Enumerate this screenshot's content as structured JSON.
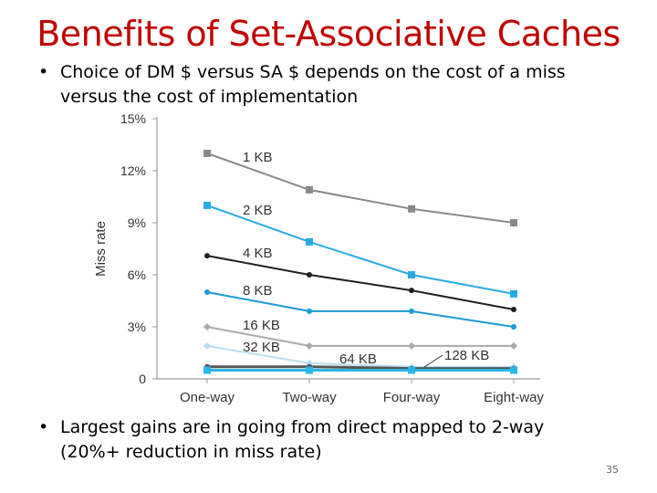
{
  "slide": {
    "title": "Benefits of Set-Associative Caches",
    "bullets": [
      "Choice of DM $ versus SA $ depends on the cost of a miss versus the cost of implementation",
      "Largest gains are in going from direct mapped to 2-way (20%+ reduction in miss rate)"
    ],
    "page_number": "35"
  },
  "chart_data": {
    "type": "line",
    "categories": [
      "One-way",
      "Two-way",
      "Four-way",
      "Eight-way"
    ],
    "ylabel": "Miss rate",
    "xlabel": "",
    "ylim": [
      0,
      15
    ],
    "y_ticks": [
      "0",
      "3%",
      "6%",
      "9%",
      "12%",
      "15%"
    ],
    "grid": false,
    "series": [
      {
        "name": "1 KB",
        "values": [
          13.0,
          10.9,
          9.8,
          9.0
        ],
        "color": "#888888",
        "marker": "square"
      },
      {
        "name": "2 KB",
        "values": [
          10.0,
          7.9,
          6.0,
          4.9
        ],
        "color": "#29abe2",
        "marker": "square"
      },
      {
        "name": "4 KB",
        "values": [
          7.1,
          6.0,
          5.1,
          4.0
        ],
        "color": "#231f20",
        "marker": "circle"
      },
      {
        "name": "8 KB",
        "values": [
          5.0,
          3.9,
          3.9,
          3.0
        ],
        "color": "#1a9ad6",
        "marker": "circle"
      },
      {
        "name": "16 KB",
        "values": [
          3.0,
          1.9,
          1.9,
          1.9
        ],
        "color": "#aaaaaa",
        "marker": "diamond"
      },
      {
        "name": "32 KB",
        "values": [
          1.9,
          0.9,
          0.7,
          0.7
        ],
        "color": "#b7dff2",
        "marker": "diamond"
      },
      {
        "name": "64 KB",
        "values": [
          0.7,
          0.7,
          0.6,
          0.6
        ],
        "color": "#555555",
        "marker": "circle"
      },
      {
        "name": "128 KB",
        "values": [
          0.5,
          0.5,
          0.5,
          0.5
        ],
        "color": "#2bb6e8",
        "marker": "square"
      }
    ]
  }
}
